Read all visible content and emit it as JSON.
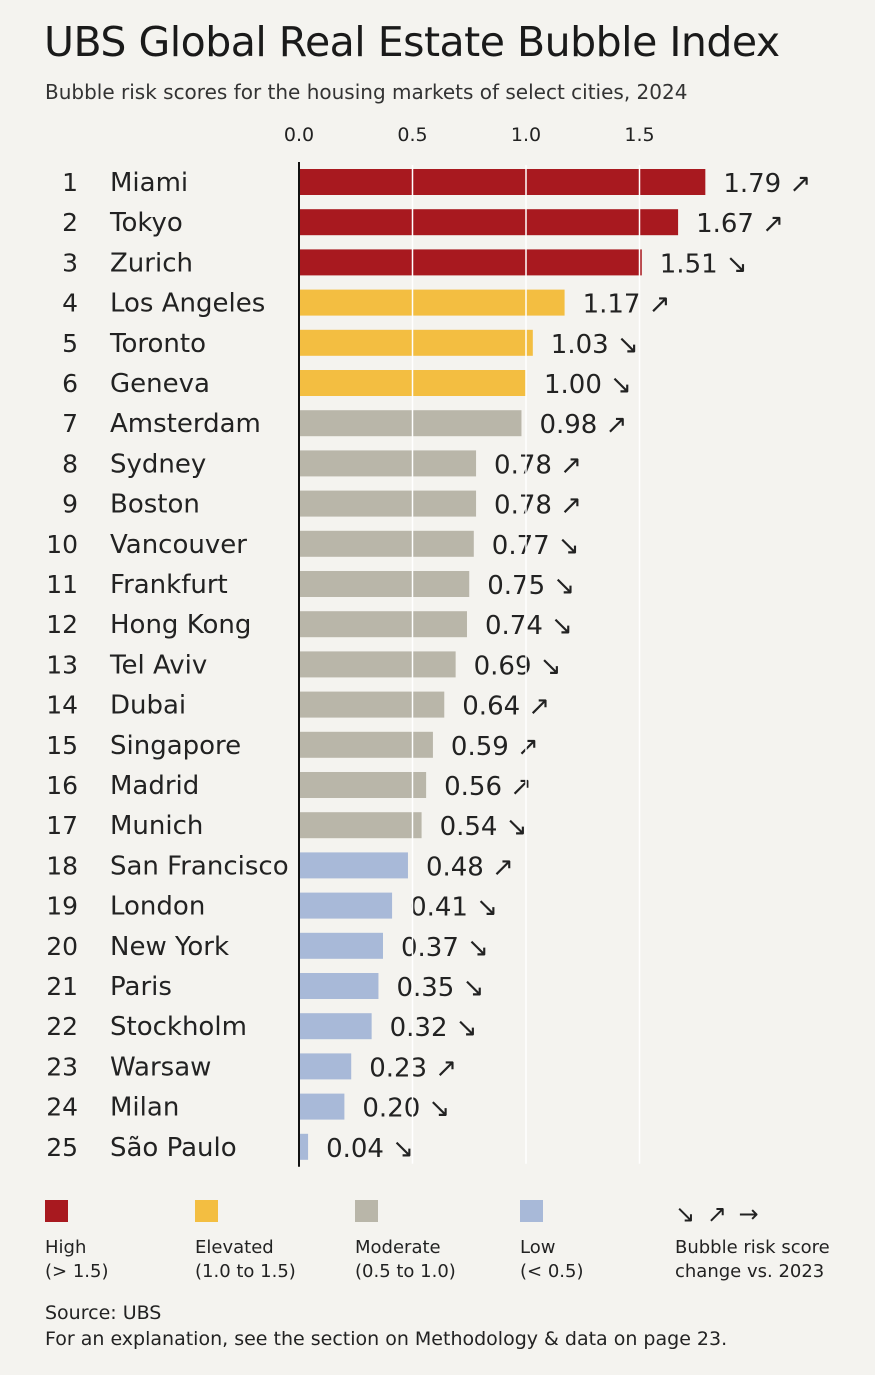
{
  "title": "UBS Global Real Estate Bubble Index",
  "subtitle": "Bubble risk scores for the housing markets of select cities, 2024",
  "colors": {
    "high": "#a8191f",
    "elevated": "#f3be41",
    "moderate": "#b9b6a9",
    "low": "#a8b9d8",
    "axis": "#111111",
    "gridline": "#ffffff"
  },
  "chart_data": {
    "type": "bar",
    "orientation": "horizontal",
    "xlim": [
      0,
      1.8
    ],
    "ticks": [
      "0.0",
      "0.5",
      "1.0",
      "1.5"
    ],
    "tick_values": [
      0,
      0.5,
      1.0,
      1.5
    ],
    "rows": [
      {
        "rank": "1",
        "city": "Miami",
        "value": 1.79,
        "label": "1.79",
        "trend": "↗",
        "category": "high"
      },
      {
        "rank": "2",
        "city": "Tokyo",
        "value": 1.67,
        "label": "1.67",
        "trend": "↗",
        "category": "high"
      },
      {
        "rank": "3",
        "city": "Zurich",
        "value": 1.51,
        "label": "1.51",
        "trend": "↘",
        "category": "high"
      },
      {
        "rank": "4",
        "city": "Los Angeles",
        "value": 1.17,
        "label": "1.17",
        "trend": "↗",
        "category": "elevated"
      },
      {
        "rank": "5",
        "city": "Toronto",
        "value": 1.03,
        "label": "1.03",
        "trend": "↘",
        "category": "elevated"
      },
      {
        "rank": "6",
        "city": "Geneva",
        "value": 1.0,
        "label": "1.00",
        "trend": "↘",
        "category": "elevated"
      },
      {
        "rank": "7",
        "city": "Amsterdam",
        "value": 0.98,
        "label": "0.98",
        "trend": "↗",
        "category": "moderate"
      },
      {
        "rank": "8",
        "city": "Sydney",
        "value": 0.78,
        "label": "0.78",
        "trend": "↗",
        "category": "moderate"
      },
      {
        "rank": "9",
        "city": "Boston",
        "value": 0.78,
        "label": "0.78",
        "trend": "↗",
        "category": "moderate"
      },
      {
        "rank": "10",
        "city": "Vancouver",
        "value": 0.77,
        "label": "0.77",
        "trend": "↘",
        "category": "moderate"
      },
      {
        "rank": "11",
        "city": "Frankfurt",
        "value": 0.75,
        "label": "0.75",
        "trend": "↘",
        "category": "moderate"
      },
      {
        "rank": "12",
        "city": "Hong Kong",
        "value": 0.74,
        "label": "0.74",
        "trend": "↘",
        "category": "moderate"
      },
      {
        "rank": "13",
        "city": "Tel Aviv",
        "value": 0.69,
        "label": "0.69",
        "trend": "↘",
        "category": "moderate"
      },
      {
        "rank": "14",
        "city": "Dubai",
        "value": 0.64,
        "label": "0.64",
        "trend": "↗",
        "category": "moderate"
      },
      {
        "rank": "15",
        "city": "Singapore",
        "value": 0.59,
        "label": "0.59",
        "trend": "↗",
        "category": "moderate"
      },
      {
        "rank": "16",
        "city": "Madrid",
        "value": 0.56,
        "label": "0.56",
        "trend": "↗",
        "category": "moderate"
      },
      {
        "rank": "17",
        "city": "Munich",
        "value": 0.54,
        "label": "0.54",
        "trend": "↘",
        "category": "moderate"
      },
      {
        "rank": "18",
        "city": "San Francisco",
        "value": 0.48,
        "label": "0.48",
        "trend": "↗",
        "category": "low"
      },
      {
        "rank": "19",
        "city": "London",
        "value": 0.41,
        "label": "0.41",
        "trend": "↘",
        "category": "low"
      },
      {
        "rank": "20",
        "city": "New York",
        "value": 0.37,
        "label": "0.37",
        "trend": "↘",
        "category": "low"
      },
      {
        "rank": "21",
        "city": "Paris",
        "value": 0.35,
        "label": "0.35",
        "trend": "↘",
        "category": "low"
      },
      {
        "rank": "22",
        "city": "Stockholm",
        "value": 0.32,
        "label": "0.32",
        "trend": "↘",
        "category": "low"
      },
      {
        "rank": "23",
        "city": "Warsaw",
        "value": 0.23,
        "label": "0.23",
        "trend": "↗",
        "category": "low"
      },
      {
        "rank": "24",
        "city": "Milan",
        "value": 0.2,
        "label": "0.20",
        "trend": "↘",
        "category": "low"
      },
      {
        "rank": "25",
        "city": "São Paulo",
        "value": 0.04,
        "label": "0.04",
        "trend": "↘",
        "category": "low"
      }
    ]
  },
  "legend": {
    "high": {
      "label": "High",
      "range": "(> 1.5)"
    },
    "elevated": {
      "label": "Elevated",
      "range": "(1.0 to 1.5)"
    },
    "moderate": {
      "label": "Moderate",
      "range": "(0.5 to 1.0)"
    },
    "low": {
      "label": "Low",
      "range": "(< 0.5)"
    },
    "change": {
      "arrows": "↘ ↗ →",
      "line1": "Bubble risk score",
      "line2": "change vs. 2023"
    }
  },
  "footer": {
    "source": "Source: UBS",
    "explanation": "For an explanation, see the section on Methodology & data on page 23."
  }
}
